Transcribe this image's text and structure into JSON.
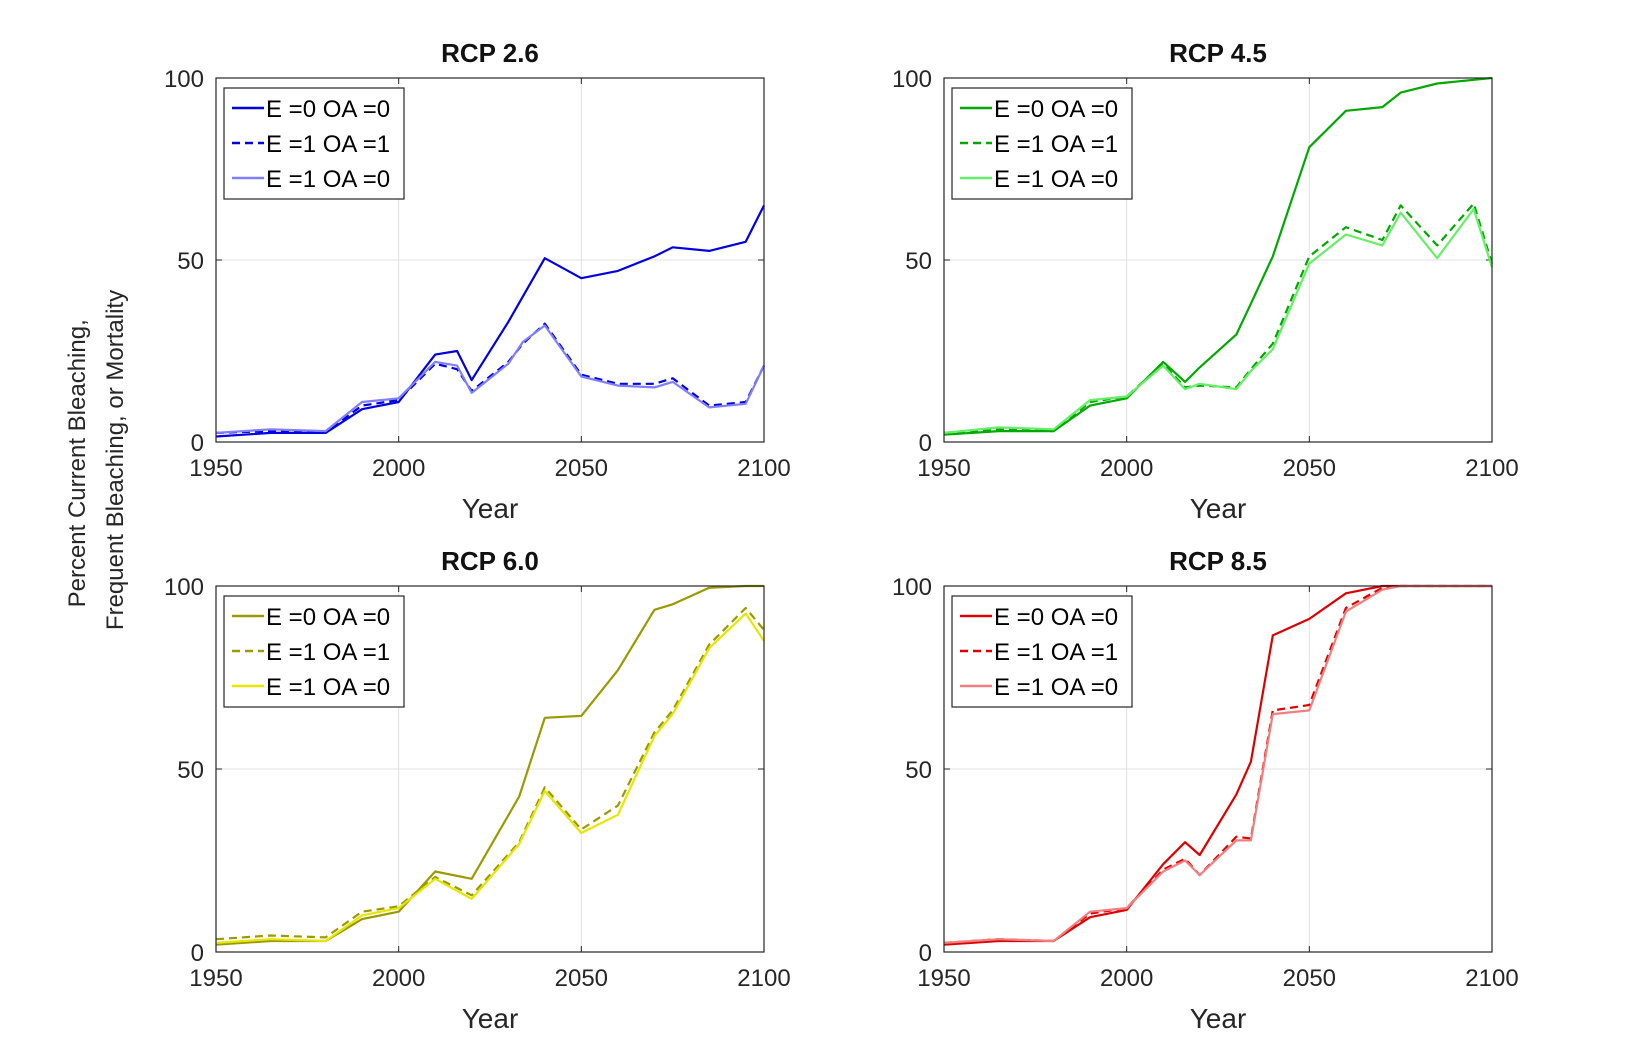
{
  "shared_ylabel": [
    "Percent Current Bleaching,",
    "Frequent Bleaching, or Mortality"
  ],
  "chart_data": [
    {
      "type": "line",
      "title": "RCP 2.6",
      "xlabel": "Year",
      "ylabel": "",
      "xlim": [
        1950,
        2100
      ],
      "ylim": [
        0,
        100
      ],
      "xticks": [
        1950,
        2000,
        2050,
        2100
      ],
      "yticks": [
        0,
        50,
        100
      ],
      "grid": true,
      "legend": "top-left",
      "series": [
        {
          "name": "E =0 OA =0",
          "color": "#0000e0",
          "dash": "solid",
          "x": [
            1950,
            1965,
            1980,
            1990,
            2000,
            2010,
            2016,
            2020,
            2030,
            2034,
            2040,
            2050,
            2060,
            2070,
            2075,
            2085,
            2095,
            2100
          ],
          "y": [
            1.5,
            2.5,
            2.5,
            9,
            11,
            24,
            25,
            17,
            33,
            40,
            50.5,
            45,
            47,
            51,
            53.5,
            52.5,
            55,
            65
          ]
        },
        {
          "name": "E =1 OA =1",
          "color": "#0000e0",
          "dash": "dashed",
          "x": [
            1950,
            1965,
            1980,
            1990,
            2000,
            2010,
            2016,
            2020,
            2030,
            2034,
            2040,
            2050,
            2060,
            2070,
            2075,
            2085,
            2095,
            2100
          ],
          "y": [
            2.5,
            3,
            2.8,
            10,
            11.5,
            21.5,
            20,
            14,
            22,
            27,
            32.5,
            18.5,
            16,
            16,
            17.5,
            10,
            11,
            21
          ]
        },
        {
          "name": "E =1 OA =0",
          "color": "#7f7fff",
          "dash": "solid",
          "x": [
            1950,
            1965,
            1980,
            1990,
            2000,
            2010,
            2016,
            2020,
            2030,
            2034,
            2040,
            2050,
            2060,
            2070,
            2075,
            2085,
            2095,
            2100
          ],
          "y": [
            2.5,
            3.5,
            3,
            11,
            12,
            22,
            21,
            13.5,
            21.5,
            27.5,
            32,
            18,
            15.5,
            15,
            16.5,
            9.5,
            10.5,
            21
          ]
        }
      ]
    },
    {
      "type": "line",
      "title": "RCP 4.5",
      "xlabel": "Year",
      "ylabel": "",
      "xlim": [
        1950,
        2100
      ],
      "ylim": [
        0,
        100
      ],
      "xticks": [
        1950,
        2000,
        2050,
        2100
      ],
      "yticks": [
        0,
        50,
        100
      ],
      "grid": true,
      "legend": "top-left",
      "series": [
        {
          "name": "E =0 OA =0",
          "color": "#00a800",
          "dash": "solid",
          "x": [
            1950,
            1965,
            1980,
            1990,
            2000,
            2010,
            2016,
            2020,
            2030,
            2034,
            2040,
            2050,
            2060,
            2070,
            2075,
            2085,
            2095,
            2100
          ],
          "y": [
            2,
            3,
            3,
            10,
            12,
            22,
            16.5,
            20.5,
            29.5,
            38,
            51,
            81,
            91,
            92,
            96,
            98.5,
            99.5,
            100
          ]
        },
        {
          "name": "E =1 OA =1",
          "color": "#00a800",
          "dash": "dashed",
          "x": [
            1950,
            1965,
            1980,
            1990,
            2000,
            2010,
            2016,
            2020,
            2030,
            2034,
            2040,
            2050,
            2060,
            2070,
            2075,
            2085,
            2095,
            2100
          ],
          "y": [
            2.5,
            3.5,
            3,
            11,
            12.5,
            21.5,
            15,
            15.5,
            15,
            20,
            27,
            51,
            59,
            55.5,
            65,
            54,
            65.5,
            49
          ]
        },
        {
          "name": "E =1 OA =0",
          "color": "#66ee66",
          "dash": "solid",
          "x": [
            1950,
            1965,
            1980,
            1990,
            2000,
            2010,
            2016,
            2020,
            2030,
            2034,
            2040,
            2050,
            2060,
            2070,
            2075,
            2085,
            2095,
            2100
          ],
          "y": [
            2.5,
            4,
            3.5,
            11.5,
            12.5,
            21,
            14.5,
            16,
            14.5,
            19.5,
            25.5,
            49,
            57,
            54,
            63,
            50.5,
            64,
            48
          ]
        }
      ]
    },
    {
      "type": "line",
      "title": "RCP 6.0",
      "xlabel": "Year",
      "ylabel": "",
      "xlim": [
        1950,
        2100
      ],
      "ylim": [
        0,
        100
      ],
      "xticks": [
        1950,
        2000,
        2050,
        2100
      ],
      "yticks": [
        0,
        50,
        100
      ],
      "grid": true,
      "legend": "top-left",
      "series": [
        {
          "name": "E =0 OA =0",
          "color": "#9a9a00",
          "dash": "solid",
          "x": [
            1950,
            1965,
            1980,
            1990,
            2000,
            2010,
            2020,
            2033,
            2040,
            2050,
            2060,
            2070,
            2075,
            2085,
            2095,
            2100
          ],
          "y": [
            2,
            3,
            3,
            9,
            11,
            22,
            20,
            42.5,
            64,
            64.5,
            77,
            93.5,
            95,
            99.5,
            100,
            100
          ]
        },
        {
          "name": "E =1 OA =1",
          "color": "#9a9a00",
          "dash": "dashed",
          "x": [
            1950,
            1965,
            1980,
            1990,
            2000,
            2010,
            2020,
            2033,
            2040,
            2050,
            2060,
            2070,
            2075,
            2085,
            2095,
            2100
          ],
          "y": [
            3.5,
            4.5,
            4,
            11,
            12.5,
            20.5,
            15.5,
            30,
            45,
            33.5,
            40,
            60,
            66,
            84,
            94,
            88
          ]
        },
        {
          "name": "E =1 OA =0",
          "color": "#e6e600",
          "dash": "solid",
          "x": [
            1950,
            1965,
            1980,
            1990,
            2000,
            2010,
            2020,
            2033,
            2040,
            2050,
            2060,
            2070,
            2075,
            2085,
            2095,
            2100
          ],
          "y": [
            2.5,
            3.5,
            3,
            10,
            12,
            20,
            14.5,
            29.5,
            44,
            32.5,
            37.5,
            59,
            65,
            83,
            92.5,
            85
          ]
        }
      ]
    },
    {
      "type": "line",
      "title": "RCP 8.5",
      "xlabel": "Year",
      "ylabel": "",
      "xlim": [
        1950,
        2100
      ],
      "ylim": [
        0,
        100
      ],
      "xticks": [
        1950,
        2000,
        2050,
        2100
      ],
      "yticks": [
        0,
        50,
        100
      ],
      "grid": true,
      "legend": "top-left",
      "series": [
        {
          "name": "E =0 OA =0",
          "color": "#dd0000",
          "dash": "solid",
          "x": [
            1950,
            1965,
            1980,
            1990,
            2000,
            2010,
            2016,
            2020,
            2030,
            2034,
            2040,
            2050,
            2060,
            2070,
            2075,
            2085,
            2100
          ],
          "y": [
            2,
            3,
            3,
            9.5,
            11.5,
            24,
            30,
            26.5,
            43,
            52,
            86.5,
            91,
            98,
            100,
            100,
            100,
            100
          ]
        },
        {
          "name": "E =1 OA =1",
          "color": "#dd0000",
          "dash": "dashed",
          "x": [
            1950,
            1965,
            1980,
            1990,
            2000,
            2010,
            2016,
            2020,
            2030,
            2034,
            2040,
            2050,
            2060,
            2070,
            2075,
            2085,
            2100
          ],
          "y": [
            2.5,
            3.5,
            3,
            10.5,
            12,
            22.5,
            25.5,
            21,
            31.5,
            31,
            66,
            67.5,
            94,
            99.5,
            100,
            100,
            100
          ]
        },
        {
          "name": "E =1 OA =0",
          "color": "#f08080",
          "dash": "solid",
          "x": [
            1950,
            1965,
            1980,
            1990,
            2000,
            2010,
            2016,
            2020,
            2030,
            2034,
            2040,
            2050,
            2060,
            2070,
            2075,
            2085,
            2100
          ],
          "y": [
            2.5,
            3.5,
            3,
            11,
            12,
            22,
            25,
            21,
            30.5,
            30.5,
            65,
            66,
            93,
            99,
            100,
            100,
            100
          ]
        }
      ]
    }
  ]
}
